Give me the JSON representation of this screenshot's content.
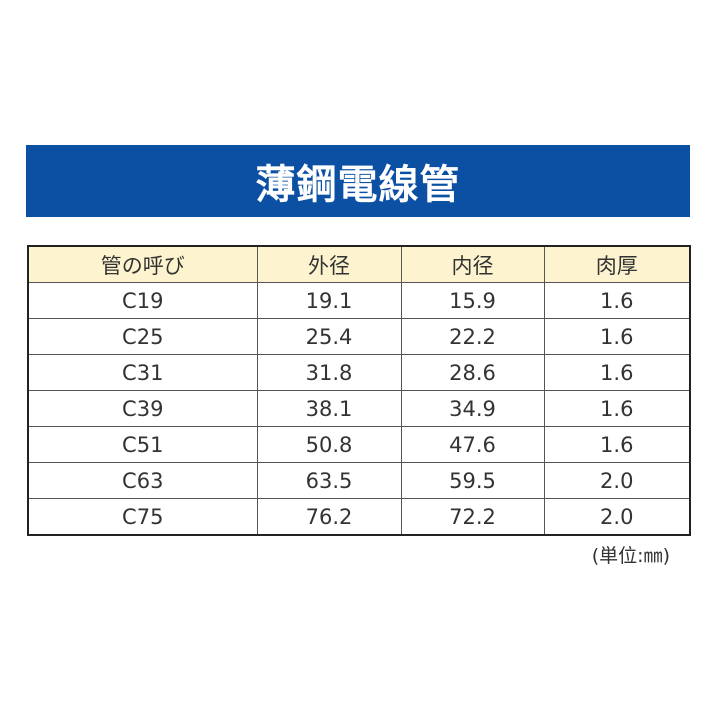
{
  "header": {
    "title": "薄鋼電線管"
  },
  "table": {
    "columns": [
      "管の呼び",
      "外径",
      "内径",
      "肉厚"
    ],
    "rows": [
      [
        "C19",
        "19.1",
        "15.9",
        "1.6"
      ],
      [
        "C25",
        "25.4",
        "22.2",
        "1.6"
      ],
      [
        "C31",
        "31.8",
        "28.6",
        "1.6"
      ],
      [
        "C39",
        "38.1",
        "34.9",
        "1.6"
      ],
      [
        "C51",
        "50.8",
        "47.6",
        "1.6"
      ],
      [
        "C63",
        "63.5",
        "59.5",
        "2.0"
      ],
      [
        "C75",
        "76.2",
        "72.2",
        "2.0"
      ]
    ]
  },
  "note": "(単位:㎜)"
}
